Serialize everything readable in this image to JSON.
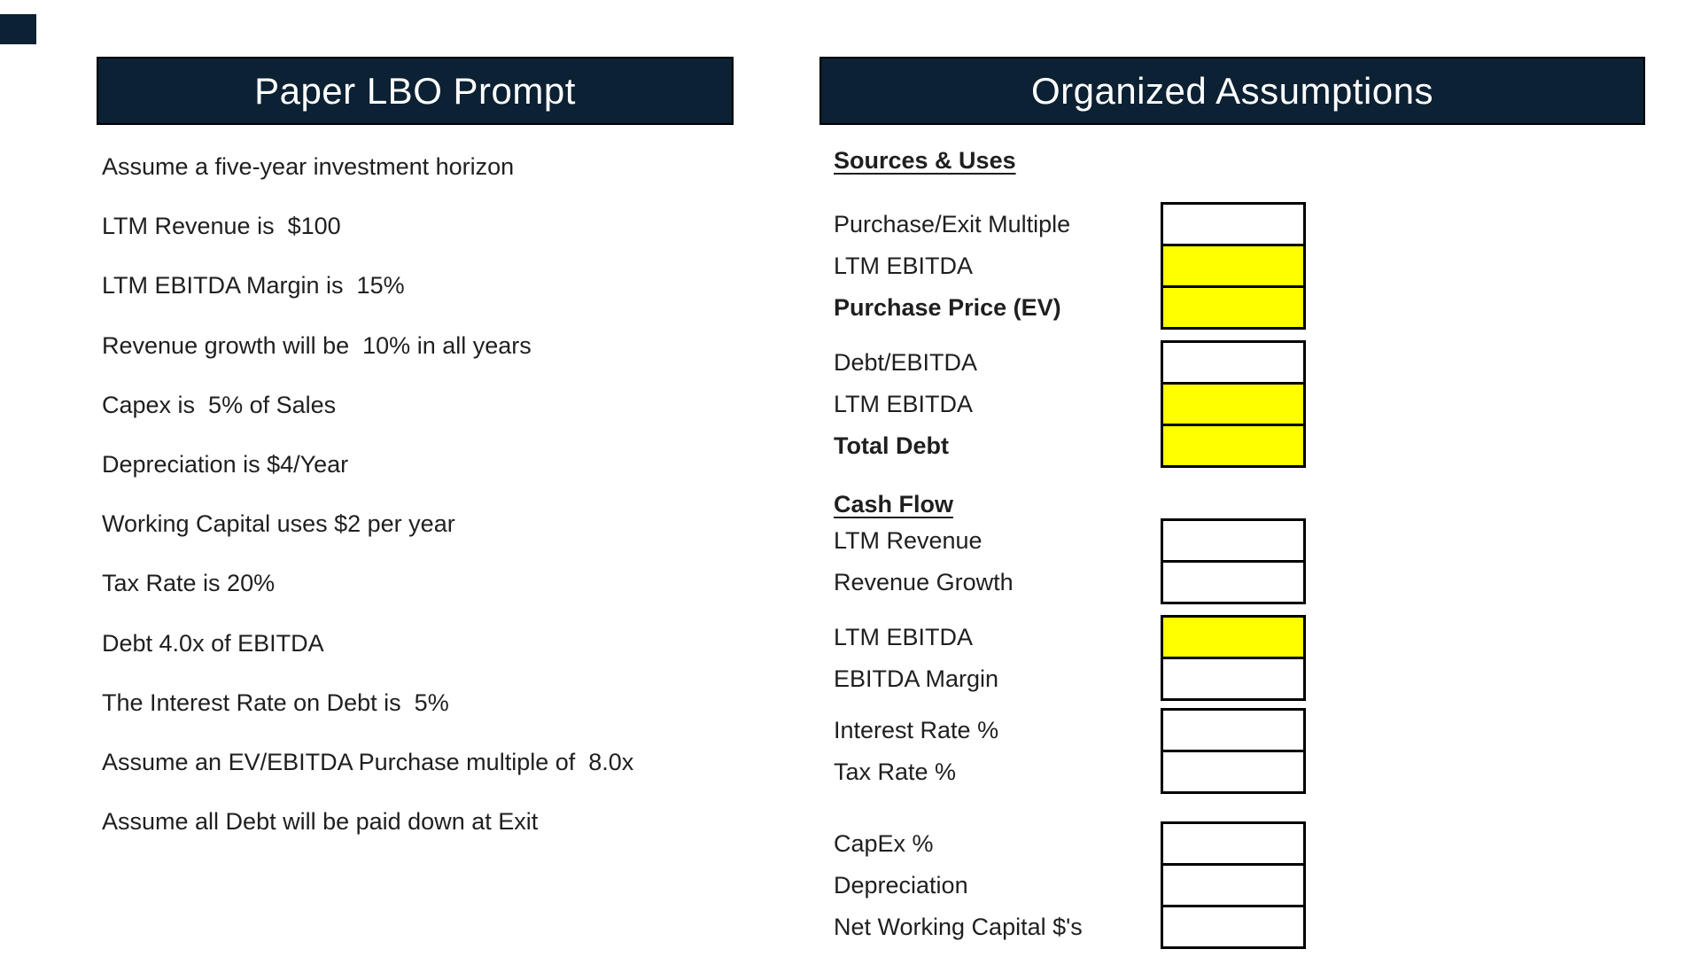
{
  "theme": {
    "navy": "#0c2133",
    "ink": "#1f1f1f",
    "highlight_yellow": "#ffff00",
    "cell_white": "#ffffff",
    "page_bg": "#ffffff"
  },
  "left_panel": {
    "title": "Paper LBO Prompt",
    "items": [
      "Assume a five-year investment horizon",
      "LTM Revenue is  $100",
      "LTM EBITDA Margin is  15%",
      "Revenue growth will be  10% in all years",
      "Capex is  5% of Sales",
      "Depreciation is $4/Year",
      "Working Capital uses $2 per year",
      "Tax Rate is 20%",
      "Debt 4.0x of EBITDA",
      "The Interest Rate on Debt is  5%",
      "Assume an EV/EBITDA Purchase multiple of  8.0x",
      "Assume all Debt will be paid down at Exit"
    ]
  },
  "right_panel": {
    "title": "Organized Assumptions",
    "sections": [
      {
        "heading": "Sources & Uses",
        "groups": [
          {
            "rows": [
              {
                "label": "Purchase/Exit Multiple",
                "fill": "white",
                "value": ""
              },
              {
                "label": "LTM EBITDA",
                "fill": "yellow",
                "value": ""
              },
              {
                "label": "Purchase Price (EV)",
                "fill": "yellow",
                "value": ""
              }
            ]
          },
          {
            "rows": [
              {
                "label": "Debt/EBITDA",
                "fill": "white",
                "value": ""
              },
              {
                "label": "LTM EBITDA",
                "fill": "yellow",
                "value": ""
              },
              {
                "label": "Total Debt",
                "fill": "yellow",
                "value": ""
              }
            ]
          }
        ]
      },
      {
        "heading": "Cash Flow",
        "groups": [
          {
            "rows": [
              {
                "label": "LTM Revenue",
                "fill": "white",
                "value": ""
              },
              {
                "label": "Revenue Growth",
                "fill": "white",
                "value": ""
              }
            ]
          },
          {
            "rows": [
              {
                "label": "LTM EBITDA",
                "fill": "yellow",
                "value": ""
              },
              {
                "label": "EBITDA Margin",
                "fill": "white",
                "value": ""
              }
            ]
          },
          {
            "rows": [
              {
                "label": "Interest Rate %",
                "fill": "white",
                "value": ""
              },
              {
                "label": "Tax Rate %",
                "fill": "white",
                "value": ""
              }
            ]
          },
          {
            "rows": [
              {
                "label": "CapEx %",
                "fill": "white",
                "value": ""
              },
              {
                "label": "Depreciation",
                "fill": "white",
                "value": ""
              },
              {
                "label": "Net Working Capital $'s",
                "fill": "white",
                "value": ""
              }
            ]
          }
        ]
      }
    ]
  }
}
